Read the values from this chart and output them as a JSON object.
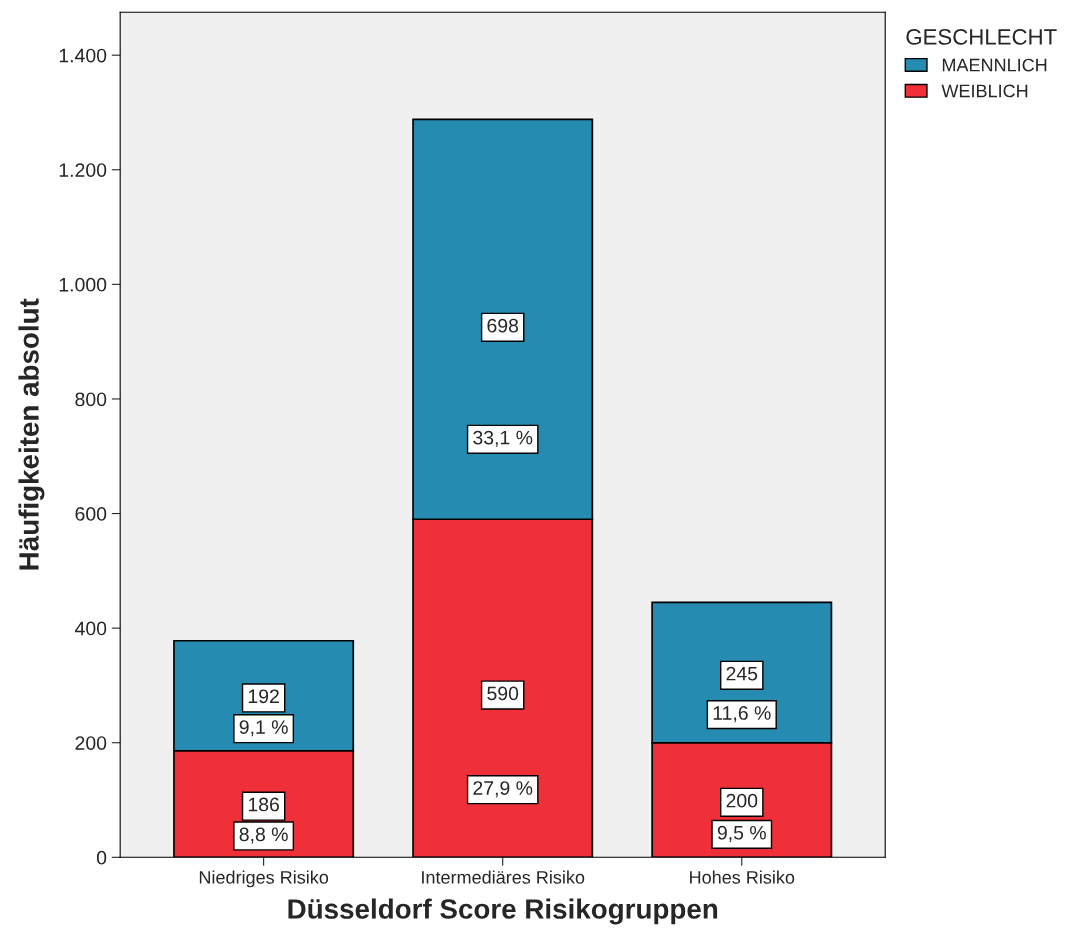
{
  "chart_data": {
    "type": "bar",
    "stacked": true,
    "xlabel": "Düsseldorf Score Risikogruppen",
    "ylabel": "Häufigkeiten absolut",
    "legend_title": "GESCHLECHT",
    "categories": [
      "Niedriges Risiko",
      "Intermediäres Risiko",
      "Hohes Risiko"
    ],
    "series": [
      {
        "name": "WEIBLICH",
        "color": "#ef3038",
        "values": [
          186,
          590,
          200
        ]
      },
      {
        "name": "MAENNLICH",
        "color": "#268bb0",
        "values": [
          192,
          698,
          245
        ]
      }
    ],
    "annotations": [
      "8,8 %",
      "9,1 %",
      "27,9 %",
      "33,1 %",
      "9,5 %",
      "11,6 %"
    ],
    "ylim": [
      0,
      1475
    ],
    "yticks": [
      0,
      200,
      400,
      600,
      800,
      {
        "value": 1000,
        "label": "1.000"
      },
      {
        "value": 1200,
        "label": "1.200"
      },
      {
        "value": 1400,
        "label": "1.400"
      }
    ],
    "data_labels": true,
    "grid": false,
    "legend": "top right"
  }
}
